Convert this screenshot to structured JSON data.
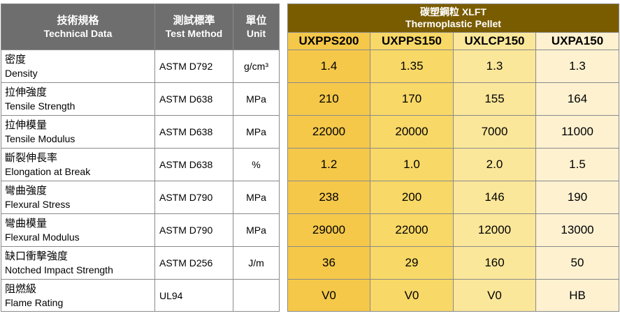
{
  "header": {
    "technical_data_zh": "技術規格",
    "technical_data_en": "Technical Data",
    "test_method_zh": "測試標準",
    "test_method_en": "Test Method",
    "unit_zh": "單位",
    "unit_en": "Unit"
  },
  "product_group": {
    "title_zh": "碳塑鋼粒 XLFT",
    "title_en": "Thermoplastic Pellet"
  },
  "products": [
    "UXPPS200",
    "UXPPS150",
    "UXLCP150",
    "UXPA150"
  ],
  "rows": [
    {
      "zh": "密度",
      "en": "Density",
      "method": "ASTM D792",
      "unit": "g/cm³",
      "values": [
        "1.4",
        "1.35",
        "1.3",
        "1.3"
      ]
    },
    {
      "zh": "拉伸強度",
      "en": "Tensile Strength",
      "method": "ASTM D638",
      "unit": "MPa",
      "values": [
        "210",
        "170",
        "155",
        "164"
      ]
    },
    {
      "zh": "拉伸模量",
      "en": "Tensile Modulus",
      "method": "ASTM D638",
      "unit": "MPa",
      "values": [
        "22000",
        "20000",
        "7000",
        "11000"
      ]
    },
    {
      "zh": "斷裂伸長率",
      "en": "Elongation at Break",
      "method": "ASTM D638",
      "unit": "%",
      "values": [
        "1.2",
        "1.0",
        "2.0",
        "1.5"
      ]
    },
    {
      "zh": "彎曲強度",
      "en": "Flexural Stress",
      "method": "ASTM D790",
      "unit": "MPa",
      "values": [
        "238",
        "200",
        "146",
        "190"
      ]
    },
    {
      "zh": "彎曲模量",
      "en": "Flexural Modulus",
      "method": "ASTM D790",
      "unit": "MPa",
      "values": [
        "29000",
        "22000",
        "12000",
        "13000"
      ]
    },
    {
      "zh": "缺口衝擊強度",
      "en": "Notched Impact Strength",
      "method": "ASTM D256",
      "unit": "J/m",
      "values": [
        "36",
        "29",
        "160",
        "50"
      ]
    },
    {
      "zh": "阻燃級",
      "en": "Flame Rating",
      "method": "UL94",
      "unit": "",
      "values": [
        "V0",
        "V0",
        "V0",
        "HB"
      ]
    }
  ],
  "colors": {
    "header_gray": "#6e6e6e",
    "header_brown": "#7a5c00",
    "col_1": "#f5c84a",
    "col_2": "#f8d866",
    "col_3": "#fbe79a",
    "col_4": "#fdf1d0"
  }
}
